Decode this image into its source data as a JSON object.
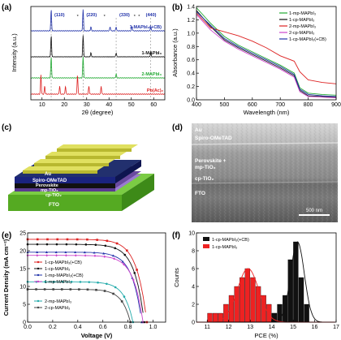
{
  "panel_labels": {
    "a": "(a)",
    "b": "(b)",
    "c": "(c)",
    "d": "(d)",
    "e": "(e)",
    "f": "(f)"
  },
  "chart_data": [
    {
      "id": "a",
      "type": "line",
      "xlabel": "2θ (degree)",
      "ylabel": "Intensity (a.u.)",
      "xlim": [
        5,
        65
      ],
      "xticks": [
        "10",
        "20",
        "30",
        "40",
        "50",
        "60"
      ],
      "peak_labels": [
        "(110)",
        "(220)",
        "(330)",
        "(440)"
      ],
      "peak_markers": [
        "*",
        "*",
        "*",
        "*"
      ],
      "series": [
        {
          "name": "1-MAPbI₃(+CB)",
          "color": "#2233aa",
          "peaks": [
            14.1,
            28.4,
            31.9,
            40.5,
            43.2,
            50.3,
            58.7
          ]
        },
        {
          "name": "1-MAPbI₃",
          "color": "#111111",
          "peaks": [
            14.1,
            28.4,
            31.9,
            43.2,
            58.7
          ]
        },
        {
          "name": "2-MAPbI₃",
          "color": "#22aa33",
          "peaks": [
            14.1,
            28.4,
            43.2
          ]
        },
        {
          "name": "Pb(Ac)₂",
          "color": "#dd2222",
          "peaks": [
            9.5,
            11.2,
            17.9,
            20.5,
            25.9,
            31.0,
            36.5
          ]
        }
      ]
    },
    {
      "id": "b",
      "type": "line",
      "xlabel": "Wavelength (nm)",
      "ylabel": "Absorbance (a.u.)",
      "xlim": [
        400,
        900
      ],
      "ylim": [
        0,
        1.4
      ],
      "xticks": [
        "400",
        "500",
        "600",
        "700",
        "800",
        "900"
      ],
      "yticks": [
        "0.0",
        "0.2",
        "0.4",
        "0.6",
        "0.8",
        "1.0",
        "1.2",
        "1.4"
      ],
      "x": [
        400,
        450,
        500,
        550,
        600,
        650,
        700,
        750,
        770,
        800,
        850,
        900
      ],
      "series": [
        {
          "name": "1-mp-MAPbI₃",
          "color": "#22aa33",
          "values": [
            1.38,
            1.15,
            0.95,
            0.82,
            0.72,
            0.62,
            0.52,
            0.4,
            0.18,
            0.1,
            0.08,
            0.07
          ]
        },
        {
          "name": "1-cp-MAPbI₃",
          "color": "#111111",
          "values": [
            1.34,
            1.1,
            0.9,
            0.78,
            0.68,
            0.58,
            0.48,
            0.36,
            0.14,
            0.06,
            0.05,
            0.04
          ]
        },
        {
          "name": "2-mp-MAPbI₃",
          "color": "#dd2222",
          "values": [
            1.3,
            1.08,
            1.02,
            0.96,
            0.88,
            0.78,
            0.66,
            0.58,
            0.42,
            0.3,
            0.26,
            0.24
          ]
        },
        {
          "name": "2-cp-MAPbI₃",
          "color": "#cc44cc",
          "values": [
            1.28,
            1.05,
            0.88,
            0.76,
            0.66,
            0.56,
            0.46,
            0.34,
            0.12,
            0.05,
            0.04,
            0.03
          ]
        },
        {
          "name": "1-cp-MAPbI₃(+CB)",
          "color": "#2233aa",
          "values": [
            1.32,
            1.12,
            0.92,
            0.8,
            0.7,
            0.6,
            0.5,
            0.38,
            0.16,
            0.08,
            0.06,
            0.05
          ]
        }
      ]
    },
    {
      "id": "e",
      "type": "line",
      "xlabel": "Voltage (V)",
      "ylabel": "Current Density (mA cm⁻²)",
      "xlim": [
        0,
        1.1
      ],
      "ylim": [
        0,
        25
      ],
      "xticks": [
        "0.0",
        "0.2",
        "0.4",
        "0.6",
        "0.8",
        "1.0"
      ],
      "yticks": [
        "0",
        "5",
        "10",
        "15",
        "20",
        "25"
      ],
      "series": [
        {
          "name": "1-cp-MAPbI₃(+CB)",
          "color": "#dd2222",
          "jsc": 23.2,
          "voc": 0.95
        },
        {
          "name": "1-cp-MAPbI₃",
          "color": "#111111",
          "jsc": 21.8,
          "voc": 0.93
        },
        {
          "name": "1-mp-MAPbI₃(+CB)",
          "color": "#2233aa",
          "jsc": 19.6,
          "voc": 0.91
        },
        {
          "name": "1-mp-MAPbI₃",
          "color": "#cc44cc",
          "jsc": 18.7,
          "voc": 0.92
        },
        {
          "name": "2-mp-MAPbI₃",
          "color": "#22aaaa",
          "jsc": 11.3,
          "voc": 0.84
        },
        {
          "name": "2-cp-MAPbI₃",
          "color": "#444444",
          "jsc": 9.2,
          "voc": 0.82
        }
      ]
    },
    {
      "id": "f",
      "type": "bar",
      "xlabel": "PCE (%)",
      "ylabel": "Counts",
      "xlim": [
        10.5,
        17
      ],
      "ylim": [
        0,
        10
      ],
      "xticks": [
        "11",
        "12",
        "13",
        "14",
        "15",
        "16",
        "17"
      ],
      "yticks": [
        "0",
        "2",
        "4",
        "6",
        "8",
        "10"
      ],
      "series": [
        {
          "name": "1-cp-MAPbI₃(+CB)",
          "color": "#111111",
          "bins": [
            14.0,
            14.25,
            14.5,
            14.75,
            15.0,
            15.25,
            15.5
          ],
          "values": [
            1,
            2,
            3,
            7,
            9,
            5,
            2
          ],
          "fit_center": 15.2,
          "fit_width": 0.45,
          "fit_peak": 9
        },
        {
          "name": "1-cp-MAPbI₃",
          "color": "#ee2222",
          "bins": [
            11.0,
            11.25,
            11.5,
            11.75,
            12.0,
            12.25,
            12.5,
            12.75,
            13.0,
            13.25,
            13.5,
            13.75,
            14.0
          ],
          "values": [
            1,
            1,
            1,
            2,
            3,
            4,
            5,
            6,
            5,
            4,
            3,
            2,
            1
          ],
          "fit_center": 12.9,
          "fit_width": 0.7,
          "fit_peak": 6
        }
      ]
    }
  ],
  "panel_c": {
    "layers": [
      {
        "label": "Au",
        "color": "#c8c840"
      },
      {
        "label": "Spiro-OMeTAD",
        "color": "#1a237e"
      },
      {
        "label": "Perovskite",
        "color": "#111111"
      },
      {
        "label": "mp-TiO₂",
        "color": "#6a4aa0"
      },
      {
        "label": "cp-TiO₂",
        "color": "#9a7ad0"
      },
      {
        "label": "FTO",
        "color": "#66bb33"
      }
    ]
  },
  "panel_d": {
    "labels": [
      "Au",
      "Spiro-OMeTAD",
      "Perovskite +",
      "mp-TiO₂",
      "cp-TiO₂",
      "FTO"
    ],
    "scale_bar": "500 nm"
  }
}
